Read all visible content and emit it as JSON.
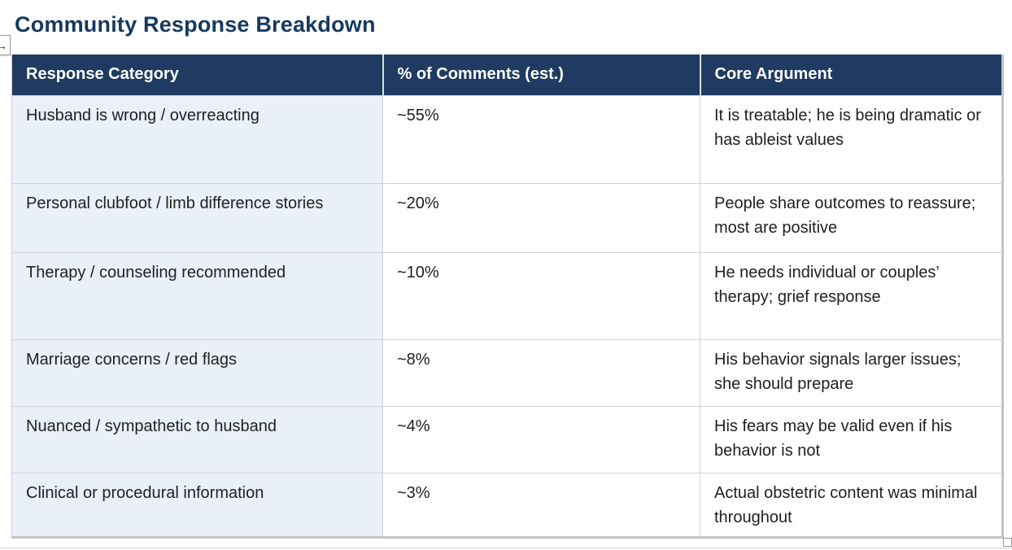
{
  "page": {
    "title": "Community Response Breakdown"
  },
  "icons": {
    "move_handle_glyph": "↔"
  },
  "table": {
    "columns": {
      "category": "Response Category",
      "percent": "% of Comments (est.)",
      "argument": "Core Argument"
    },
    "rows": [
      {
        "category": "Husband is wrong / overreacting",
        "percent": "~55%",
        "argument": "It is treatable; he is being dramatic or has ableist values"
      },
      {
        "category": "Personal clubfoot / limb difference stories",
        "percent": "~20%",
        "argument": "People share outcomes to reassure; most are positive"
      },
      {
        "category": "Therapy / counseling recommended",
        "percent": "~10%",
        "argument": "He needs individual or couples’ therapy; grief response"
      },
      {
        "category": "Marriage concerns / red flags",
        "percent": "~8%",
        "argument": "His behavior signals larger issues; she should prepare"
      },
      {
        "category": "Nuanced / sympathetic to husband",
        "percent": "~4%",
        "argument": "His fears may be valid even if his behavior is not"
      },
      {
        "category": "Clinical or procedural information",
        "percent": "~3%",
        "argument": "Actual obstetric content was minimal throughout"
      }
    ]
  },
  "colors": {
    "header_bg": "#1F3B61",
    "title_text": "#17395F",
    "category_cell_bg": "#EAF0F9",
    "body_text": "#202124",
    "grid_border": "#D2D2D2"
  }
}
